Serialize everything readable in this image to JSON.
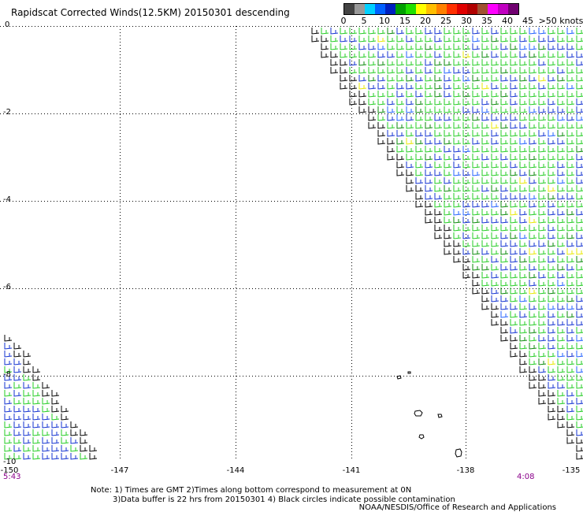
{
  "title": "Rapidscat Corrected Winds(12.5KM) 20150301 descending",
  "legend": {
    "colors": [
      "#444444",
      "#999999",
      "#00d0ff",
      "#0060ff",
      "#0020c0",
      "#00a000",
      "#20e000",
      "#ffff00",
      "#ffbe00",
      "#ff8000",
      "#ff3000",
      "#e00000",
      "#b00000",
      "#a05030",
      "#ff00ff",
      "#c000c0",
      "#700070"
    ],
    "labels": [
      "0",
      "5",
      "10",
      "15",
      "20",
      "25",
      "30",
      "35",
      "40",
      "45",
      ">50 knots"
    ]
  },
  "axes": {
    "y_labels": [
      "0",
      "-2",
      "-4",
      "-6",
      "-8",
      "-10"
    ],
    "x_labels": [
      "-150",
      "-147",
      "-144",
      "-141",
      "-138",
      "-135"
    ]
  },
  "times": {
    "left": "5:43",
    "right": "4:08"
  },
  "notes": [
    "Note: 1) Times are GMT 2)Times along bottom correspond to measurement at 0N",
    "3)Data buffer is 22 hrs from 20150301 4) Black circles indicate possible contamination"
  ],
  "credit": "NOAA/NESDIS/Office of Research and Applications"
}
